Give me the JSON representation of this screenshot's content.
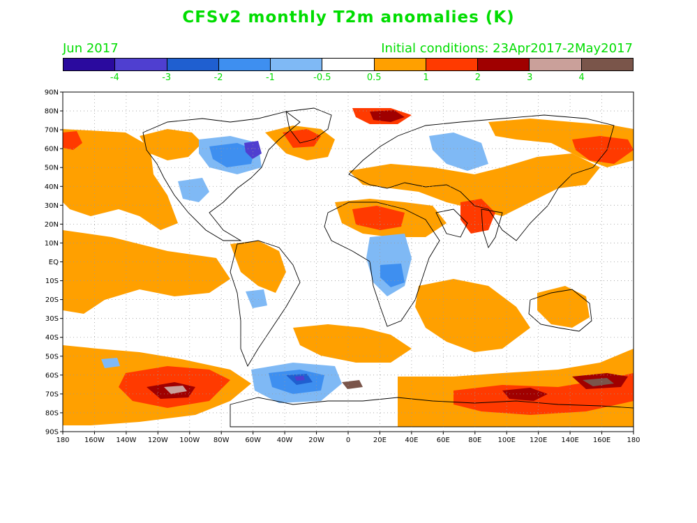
{
  "title": "CFSv2 monthly T2m anomalies (K)",
  "subtitle_left": "Jun 2017",
  "subtitle_right": "Initial conditions: 23Apr2017-2May2017",
  "colorbar": {
    "colors": [
      "#2a0a9e",
      "#4f3fd0",
      "#1f5fd0",
      "#3e8ff0",
      "#7fb9f5",
      "#ffffff",
      "#ffa000",
      "#ff3a00",
      "#a00000",
      "#caa09a",
      "#7a554a"
    ],
    "labels": [
      "-4",
      "-3",
      "-2",
      "-1",
      "-0.5",
      "0.5",
      "1",
      "2",
      "3",
      "4"
    ]
  },
  "y_axis_labels": [
    "90N",
    "80N",
    "70N",
    "60N",
    "50N",
    "40N",
    "30N",
    "20N",
    "10N",
    "EQ",
    "10S",
    "20S",
    "30S",
    "40S",
    "50S",
    "60S",
    "70S",
    "80S",
    "90S"
  ],
  "x_axis_labels": [
    "180",
    "160W",
    "140W",
    "120W",
    "100W",
    "80W",
    "60W",
    "40W",
    "20W",
    "0",
    "20E",
    "40E",
    "60E",
    "80E",
    "100E",
    "120E",
    "140E",
    "160E",
    "180"
  ]
}
